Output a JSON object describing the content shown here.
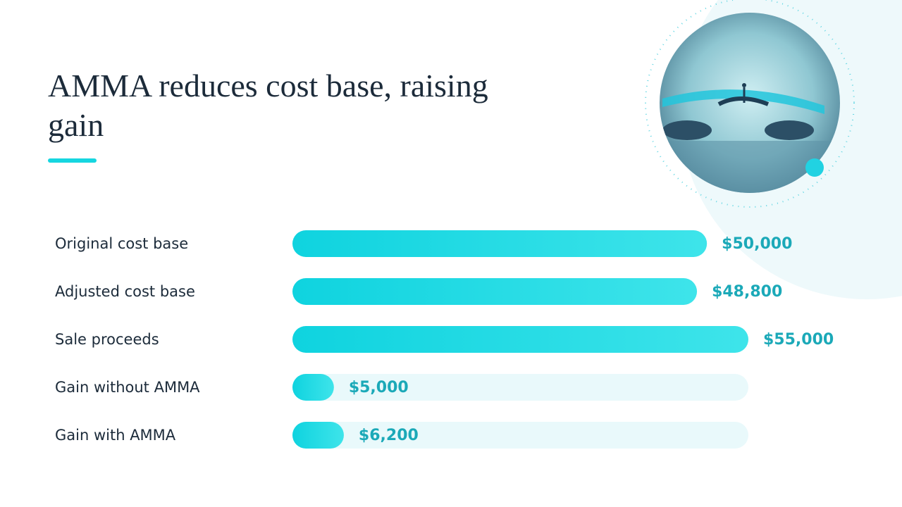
{
  "chart_data": {
    "type": "bar",
    "orientation": "horizontal",
    "title": "AMMA reduces cost base, raising gain",
    "categories": [
      "Original cost base",
      "Adjusted cost base",
      "Sale proceeds",
      "Gain without AMMA",
      "Gain with AMMA"
    ],
    "values": [
      50000,
      48800,
      55000,
      5000,
      6200
    ],
    "value_labels": [
      "$50,000",
      "$48,800",
      "$55,000",
      "$5,000",
      "$6,200"
    ],
    "color": "#16d6e0"
  }
}
